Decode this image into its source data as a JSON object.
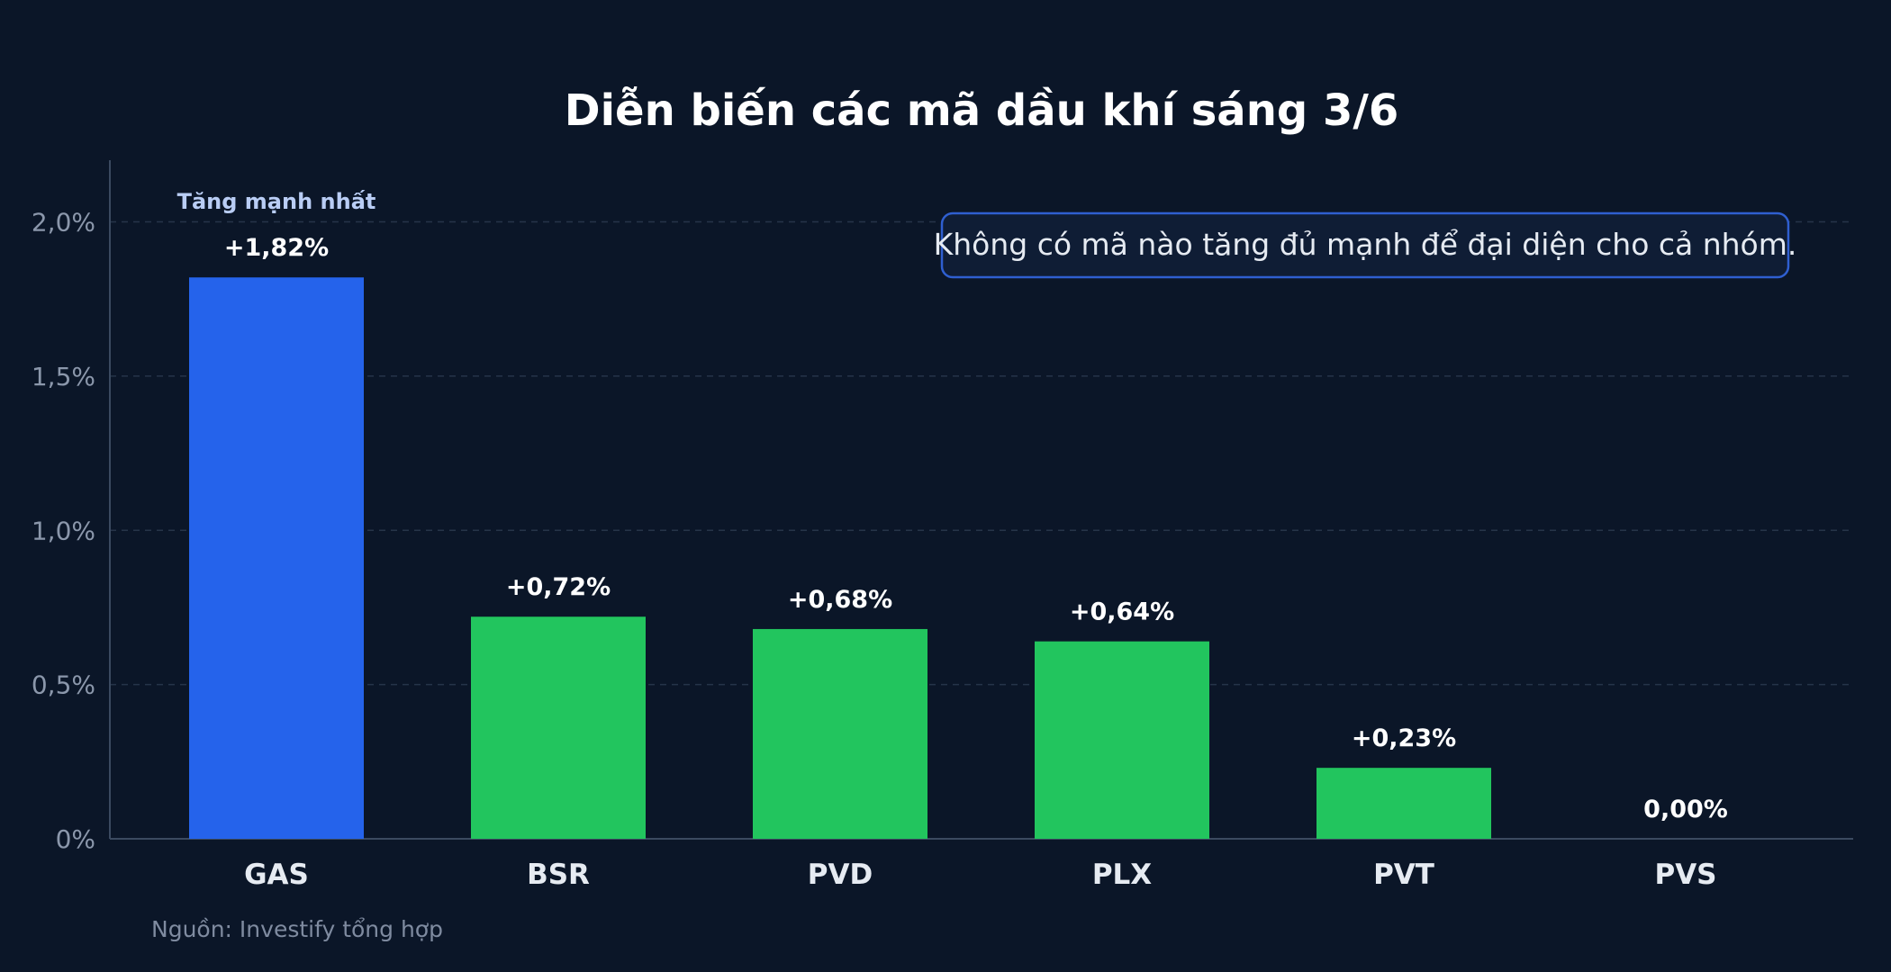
{
  "chart_data": {
    "type": "bar",
    "title": "Diễn biến các mã dầu khí sáng 3/6",
    "categories": [
      "GAS",
      "BSR",
      "PVD",
      "PLX",
      "PVT",
      "PVS"
    ],
    "values": [
      1.82,
      0.72,
      0.68,
      0.64,
      0.23,
      0.0
    ],
    "value_labels": [
      "+1,82%",
      "+0,72%",
      "+0,68%",
      "+0,64%",
      "+0,23%",
      "0,00%"
    ],
    "yticks": [
      0,
      0.5,
      1.0,
      1.5,
      2.0
    ],
    "ytick_labels": [
      "0%",
      "0,5%",
      "1,0%",
      "1,5%",
      "2,0%"
    ],
    "ylim": [
      0,
      2.2
    ],
    "grid": true,
    "highlight": {
      "index": 0,
      "label": "Tăng mạnh nhất",
      "color": "#2563eb"
    },
    "bar_color": "#22c55e",
    "annotation": "Không có mã nào tăng đủ mạnh để đại diện cho cả nhóm.",
    "source": "Nguồn: Investify tổng hợp"
  },
  "colors": {
    "background": "#0b1628",
    "grid": "#263449",
    "axis": "#3b4a60",
    "note_border": "#2f5fd0",
    "note_fill": "#0f1d35"
  }
}
